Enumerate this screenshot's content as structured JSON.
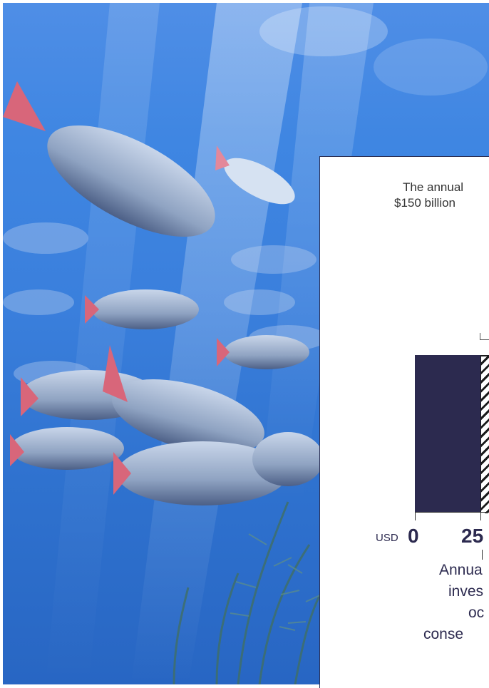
{
  "intro": {
    "line1": "The annual",
    "line2": "$150 billion"
  },
  "axis": {
    "currency": "USD",
    "tick_0": "0",
    "tick_25": "25"
  },
  "caption": {
    "line1": "Annua",
    "line2": "inves",
    "line3": "oc",
    "line4": "conse"
  },
  "colors": {
    "bar_solid": "#2c2a4f",
    "water": "#3a7fdc",
    "text": "#2c2a4f"
  },
  "photo": {
    "subject": "school-of-fish-underwater"
  }
}
